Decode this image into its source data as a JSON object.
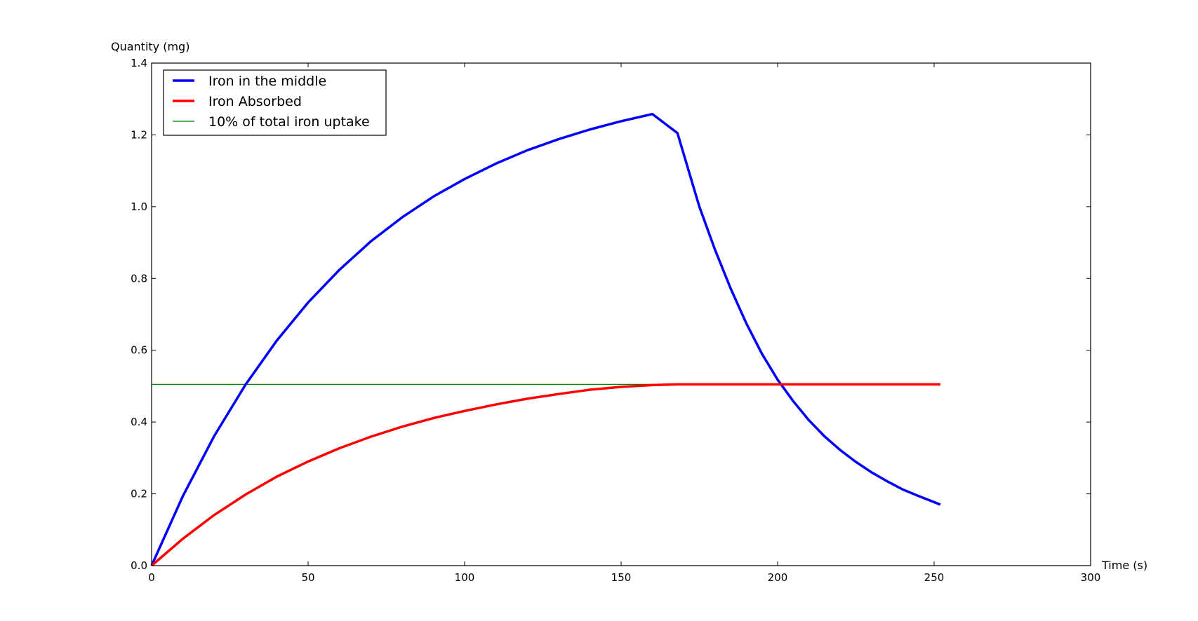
{
  "chart_data": {
    "type": "line",
    "title": "",
    "xlabel": "Time (s)",
    "ylabel": "Quantity (mg)",
    "xlim": [
      0,
      300
    ],
    "ylim": [
      0,
      1.4
    ],
    "xticks": [
      0,
      50,
      100,
      150,
      200,
      250,
      300
    ],
    "xtick_labels": [
      "0",
      "50",
      "100",
      "150",
      "200",
      "250",
      "300"
    ],
    "yticks": [
      0,
      0.2,
      0.4,
      0.6,
      0.8,
      1.0,
      1.2,
      1.4
    ],
    "ytick_labels": [
      "0.0",
      "0.2",
      "0.4",
      "0.6",
      "0.8",
      "1.0",
      "1.2",
      "1.4"
    ],
    "grid": false,
    "legend_position": "top-left",
    "series": [
      {
        "name": "Iron in the middle",
        "color": "#0000ff",
        "x": [
          0,
          10,
          20,
          30,
          40,
          50,
          60,
          70,
          80,
          90,
          100,
          110,
          120,
          130,
          140,
          150,
          160,
          168,
          175,
          180,
          185,
          190,
          195,
          200,
          205,
          210,
          215,
          220,
          225,
          230,
          235,
          240,
          245,
          252
        ],
        "y": [
          0,
          0.194,
          0.361,
          0.504,
          0.627,
          0.733,
          0.824,
          0.903,
          0.97,
          1.028,
          1.077,
          1.12,
          1.157,
          1.188,
          1.215,
          1.238,
          1.258,
          1.205,
          1.0,
          0.88,
          0.772,
          0.675,
          0.59,
          0.518,
          0.458,
          0.405,
          0.36,
          0.322,
          0.289,
          0.26,
          0.235,
          0.212,
          0.194,
          0.17
        ]
      },
      {
        "name": "Iron Absorbed",
        "color": "#ff0000",
        "x": [
          0,
          10,
          20,
          30,
          40,
          50,
          60,
          70,
          80,
          90,
          100,
          110,
          120,
          130,
          140,
          150,
          160,
          168,
          252
        ],
        "y": [
          0,
          0.075,
          0.141,
          0.198,
          0.248,
          0.29,
          0.327,
          0.359,
          0.387,
          0.411,
          0.431,
          0.449,
          0.465,
          0.478,
          0.49,
          0.498,
          0.503,
          0.505,
          0.505
        ]
      },
      {
        "name": "10% of total iron uptake",
        "color": "#008000",
        "x": [
          0,
          252
        ],
        "y": [
          0.505,
          0.505
        ]
      }
    ]
  }
}
